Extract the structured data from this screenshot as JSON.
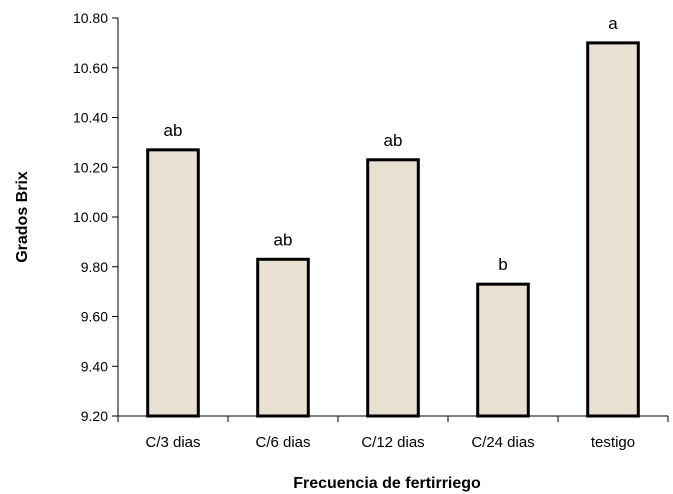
{
  "chart_data": {
    "type": "bar",
    "title": "",
    "xlabel": "Frecuencia de fertirriego",
    "ylabel": "Grados Brix",
    "categories": [
      "C/3 dias",
      "C/6 dias",
      "C/12 dias",
      "C/24 dias",
      "testigo"
    ],
    "values": [
      10.27,
      9.83,
      10.23,
      9.73,
      10.7
    ],
    "data_labels": [
      "ab",
      "ab",
      "ab",
      "b",
      "a"
    ],
    "ylim": [
      9.2,
      10.8
    ],
    "yticks": [
      9.2,
      9.4,
      9.6,
      9.8,
      10.0,
      10.2,
      10.4,
      10.6,
      10.8
    ],
    "ytick_labels": [
      "9.20",
      "9.40",
      "9.60",
      "9.80",
      "10.00",
      "10.20",
      "10.40",
      "10.60",
      "10.80"
    ],
    "grid": false,
    "legend": "none",
    "colors": {
      "bar_fill": "#e8e1d1",
      "bar_stroke": "#000000"
    }
  }
}
